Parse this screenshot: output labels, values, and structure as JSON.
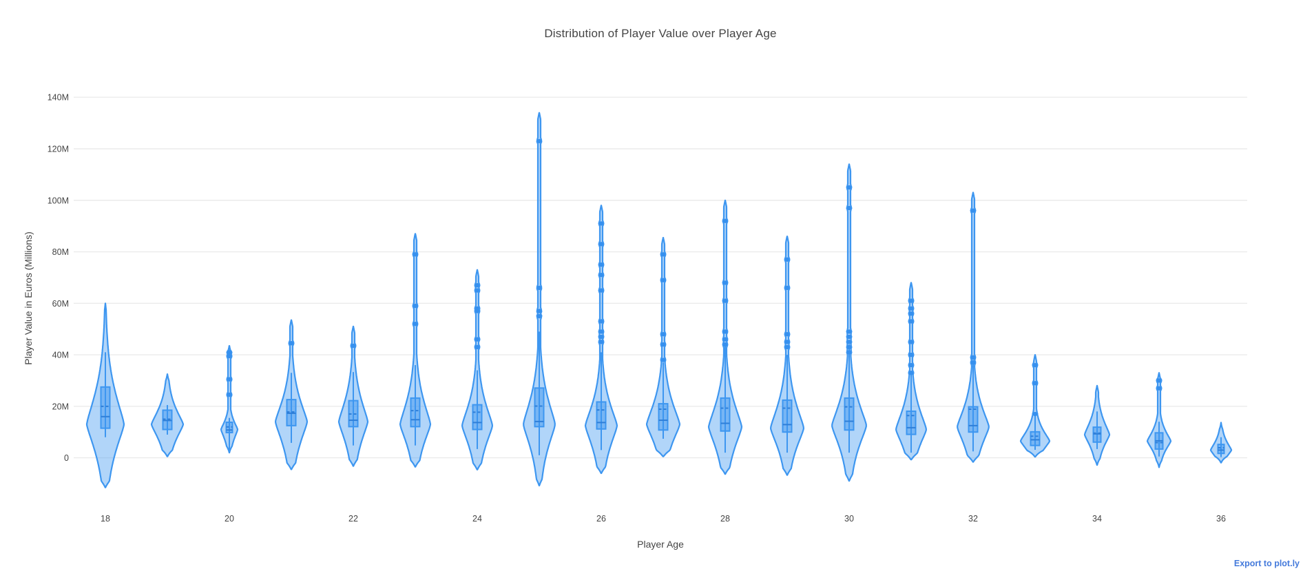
{
  "export_link": {
    "label": "Export to plot.ly"
  },
  "colors": {
    "violin_line": "#3D96F0",
    "violin_fill": "rgba(61,150,240,0.40)",
    "box_fill": "rgba(61,150,240,0.50)",
    "inner_line": "#2E7FD9",
    "marker": "#3690EE",
    "grid": "#EBEBEB",
    "text": "#444444",
    "link": "#447ADB",
    "background": "#FFFFFF"
  },
  "chart_data": {
    "type": "violin",
    "title": "Distribution of Player Value over Player Age",
    "xlabel": "Player Age",
    "ylabel": "Player Value in Euros (Millions)",
    "legend": "none",
    "grid": true,
    "x_ticks": [
      18,
      20,
      22,
      24,
      26,
      28,
      30,
      32,
      34,
      36
    ],
    "y_ticks": [
      {
        "value": 0,
        "label": "0"
      },
      {
        "value": 20,
        "label": "20M"
      },
      {
        "value": 40,
        "label": "40M"
      },
      {
        "value": 60,
        "label": "60M"
      },
      {
        "value": 80,
        "label": "80M"
      },
      {
        "value": 100,
        "label": "100M"
      },
      {
        "value": 120,
        "label": "120M"
      },
      {
        "value": 140,
        "label": "140M"
      }
    ],
    "ylim": [
      -15,
      148
    ],
    "xlim": [
      17,
      37
    ],
    "values_unit": "millions of euros",
    "series": [
      {
        "age": 18,
        "violin_top": 60,
        "violin_bottom": -11.5,
        "q1": 11.5,
        "median": 16,
        "q3": 27.5,
        "mean": 20,
        "whisker_low": 8,
        "whisker_high": 41,
        "outliers": [],
        "peak": 13,
        "half_width": 27,
        "spread_down": 16,
        "spread_up": 18,
        "spike": false
      },
      {
        "age": 19,
        "violin_top": 32.5,
        "violin_bottom": 0.5,
        "q1": 11,
        "median": 14.5,
        "q3": 18.5,
        "mean": 15,
        "whisker_low": 9,
        "whisker_high": 20.5,
        "outliers": [],
        "peak": 13,
        "half_width": 23,
        "spread_down": 9,
        "spread_up": 9,
        "spike": false
      },
      {
        "age": 20,
        "violin_top": 43.5,
        "violin_bottom": 2,
        "q1": 9.8,
        "median": 10.8,
        "q3": 13.8,
        "mean": 12,
        "whisker_low": 3.1,
        "whisker_high": 15.5,
        "outliers": [
          41,
          39.5,
          30.5,
          24.5
        ],
        "peak": 11,
        "half_width": 12,
        "spread_down": 6,
        "spread_up": 5,
        "spike": true
      },
      {
        "age": 21,
        "violin_top": 53.5,
        "violin_bottom": -4.5,
        "q1": 12.5,
        "median": 17.3,
        "q3": 22.6,
        "mean": 17.8,
        "whisker_low": 5.8,
        "whisker_high": 33,
        "outliers": [
          44.5
        ],
        "peak": 14,
        "half_width": 23,
        "spread_down": 13,
        "spread_up": 13,
        "spike": true
      },
      {
        "age": 22,
        "violin_top": 51,
        "violin_bottom": -3.2,
        "q1": 12.1,
        "median": 14.6,
        "q3": 22.2,
        "mean": 17,
        "whisker_low": 4.8,
        "whisker_high": 33.3,
        "outliers": [
          43.5
        ],
        "peak": 14,
        "half_width": 21,
        "spread_down": 12,
        "spread_up": 13,
        "spike": true
      },
      {
        "age": 23,
        "violin_top": 87,
        "violin_bottom": -3.5,
        "q1": 12.1,
        "median": 14.8,
        "q3": 23.2,
        "mean": 18.3,
        "whisker_low": 4.8,
        "whisker_high": 36,
        "outliers": [
          79,
          59,
          52
        ],
        "peak": 13,
        "half_width": 22,
        "spread_down": 12,
        "spread_up": 14,
        "spike": true
      },
      {
        "age": 24,
        "violin_top": 73,
        "violin_bottom": -4.6,
        "q1": 11,
        "median": 13.7,
        "q3": 20.6,
        "mean": 17.7,
        "whisker_low": 3.4,
        "whisker_high": 34,
        "outliers": [
          67,
          65,
          58,
          57,
          46,
          43
        ],
        "peak": 12.5,
        "half_width": 22,
        "spread_down": 12,
        "spread_up": 13,
        "spike": true
      },
      {
        "age": 25,
        "violin_top": 134,
        "violin_bottom": -10.8,
        "q1": 12.1,
        "median": 14.1,
        "q3": 27.1,
        "mean": 20.1,
        "whisker_low": 1,
        "whisker_high": 49,
        "outliers": [
          123,
          66,
          57,
          55
        ],
        "peak": 13,
        "half_width": 23,
        "spread_down": 14,
        "spread_up": 15,
        "spike": true
      },
      {
        "age": 26,
        "violin_top": 98,
        "violin_bottom": -6,
        "q1": 11.2,
        "median": 13.7,
        "q3": 21.7,
        "mean": 18.6,
        "whisker_low": 3,
        "whisker_high": 41,
        "outliers": [
          91,
          83,
          75,
          71,
          65,
          53,
          49,
          47,
          45
        ],
        "peak": 12.5,
        "half_width": 23,
        "spread_down": 13,
        "spread_up": 13,
        "spike": true
      },
      {
        "age": 27,
        "violin_top": 85.5,
        "violin_bottom": 0.5,
        "q1": 10.8,
        "median": 14.6,
        "q3": 21,
        "mean": 18.9,
        "whisker_low": 7.4,
        "whisker_high": 37,
        "outliers": [
          79,
          69,
          48,
          44,
          38
        ],
        "peak": 13,
        "half_width": 24,
        "spread_down": 11,
        "spread_up": 13,
        "spike": true
      },
      {
        "age": 28,
        "violin_top": 100,
        "violin_bottom": -6.3,
        "q1": 10.4,
        "median": 13.4,
        "q3": 23.2,
        "mean": 19.3,
        "whisker_low": 2,
        "whisker_high": 44,
        "outliers": [
          92,
          68,
          61,
          49,
          46,
          44
        ],
        "peak": 12,
        "half_width": 24,
        "spread_down": 13,
        "spread_up": 14,
        "spike": true
      },
      {
        "age": 29,
        "violin_top": 86,
        "violin_bottom": -6.7,
        "q1": 10,
        "median": 12.9,
        "q3": 22.4,
        "mean": 19.3,
        "whisker_low": 2,
        "whisker_high": 40,
        "outliers": [
          77,
          66,
          48,
          45,
          43
        ],
        "peak": 11.5,
        "half_width": 24,
        "spread_down": 12,
        "spread_up": 14,
        "spike": true
      },
      {
        "age": 30,
        "violin_top": 114,
        "violin_bottom": -9,
        "q1": 10.8,
        "median": 14.2,
        "q3": 23.2,
        "mean": 19.8,
        "whisker_low": 2,
        "whisker_high": 44,
        "outliers": [
          105,
          97,
          49,
          47,
          45,
          43,
          41
        ],
        "peak": 12.5,
        "half_width": 25,
        "spread_down": 13,
        "spread_up": 14,
        "spike": true
      },
      {
        "age": 31,
        "violin_top": 68,
        "violin_bottom": -0.7,
        "q1": 9.1,
        "median": 11.7,
        "q3": 18.1,
        "mean": 16.4,
        "whisker_low": 2,
        "whisker_high": 33,
        "outliers": [
          61,
          58,
          56,
          53,
          45,
          40,
          36,
          33
        ],
        "peak": 11,
        "half_width": 22,
        "spread_down": 10,
        "spread_up": 12,
        "spike": true
      },
      {
        "age": 32,
        "violin_top": 103,
        "violin_bottom": -1.6,
        "q1": 10,
        "median": 12.5,
        "q3": 19.8,
        "mean": 18.9,
        "whisker_low": 2.5,
        "whisker_high": 38,
        "outliers": [
          96,
          39,
          37
        ],
        "peak": 12,
        "half_width": 23,
        "spread_down": 11,
        "spread_up": 12,
        "spike": true
      },
      {
        "age": 33,
        "violin_top": 40,
        "violin_bottom": 0.4,
        "q1": 4.8,
        "median": 7,
        "q3": 10.1,
        "mean": 8.4,
        "whisker_low": 3.1,
        "whisker_high": 17,
        "outliers": [
          36,
          29,
          17
        ],
        "peak": 6.5,
        "half_width": 21,
        "spread_down": 5.5,
        "spread_up": 6.5,
        "spike": true
      },
      {
        "age": 34,
        "violin_top": 28,
        "violin_bottom": -2.8,
        "q1": 6.1,
        "median": 9.3,
        "q3": 11.9,
        "mean": 9.6,
        "whisker_low": 3.4,
        "whisker_high": 18,
        "outliers": [],
        "peak": 9,
        "half_width": 18,
        "spread_down": 7,
        "spread_up": 8,
        "spike": true
      },
      {
        "age": 35,
        "violin_top": 33,
        "violin_bottom": -3.7,
        "q1": 3.4,
        "median": 6.6,
        "q3": 9.7,
        "mean": 5.9,
        "whisker_low": 0.5,
        "whisker_high": 14,
        "outliers": [
          30,
          27
        ],
        "peak": 6.5,
        "half_width": 17,
        "spread_down": 5.5,
        "spread_up": 6,
        "spike": true
      },
      {
        "age": 36,
        "violin_top": 13.7,
        "violin_bottom": -1.9,
        "q1": 1.7,
        "median": 3,
        "q3": 5.2,
        "mean": 3.9,
        "whisker_low": 0.3,
        "whisker_high": 8,
        "outliers": [],
        "peak": 3,
        "half_width": 15,
        "spread_down": 4,
        "spread_up": 5,
        "spike": false
      }
    ]
  }
}
